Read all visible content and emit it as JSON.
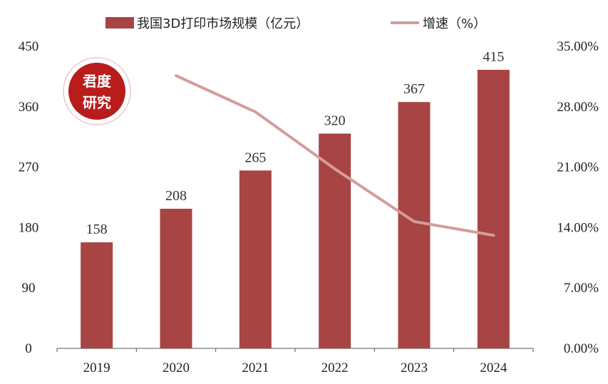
{
  "chart_data": {
    "type": "bar",
    "categories": [
      "2019",
      "2020",
      "2021",
      "2022",
      "2023",
      "2024"
    ],
    "series": [
      {
        "name": "我国3D打印市场规模（亿元）",
        "type": "bar",
        "axis": "left",
        "color": "#a84444",
        "values": [
          158,
          208,
          265,
          320,
          367,
          415
        ],
        "labels": [
          "158",
          "208",
          "265",
          "320",
          "367",
          "415"
        ]
      },
      {
        "name": "增速（%）",
        "type": "line",
        "axis": "right",
        "color": "#d49c9c",
        "values": [
          null,
          31.6,
          27.4,
          20.8,
          14.7,
          13.1
        ]
      }
    ],
    "y_left": {
      "ticks": [
        0,
        90,
        180,
        270,
        360,
        450
      ],
      "tick_labels": [
        "0",
        "90",
        "180",
        "270",
        "360",
        "450"
      ],
      "range": [
        0,
        450
      ]
    },
    "y_right": {
      "ticks": [
        0,
        7,
        14,
        21,
        28,
        35
      ],
      "tick_labels": [
        "0.00%",
        "7.00%",
        "14.00%",
        "21.00%",
        "28.00%",
        "35.00%"
      ],
      "range": [
        0,
        35
      ]
    },
    "grid": false,
    "legend_position": "top-center"
  },
  "watermark": {
    "text_line1": "君度",
    "text_line2": "研究",
    "color": "#b81c1c"
  }
}
